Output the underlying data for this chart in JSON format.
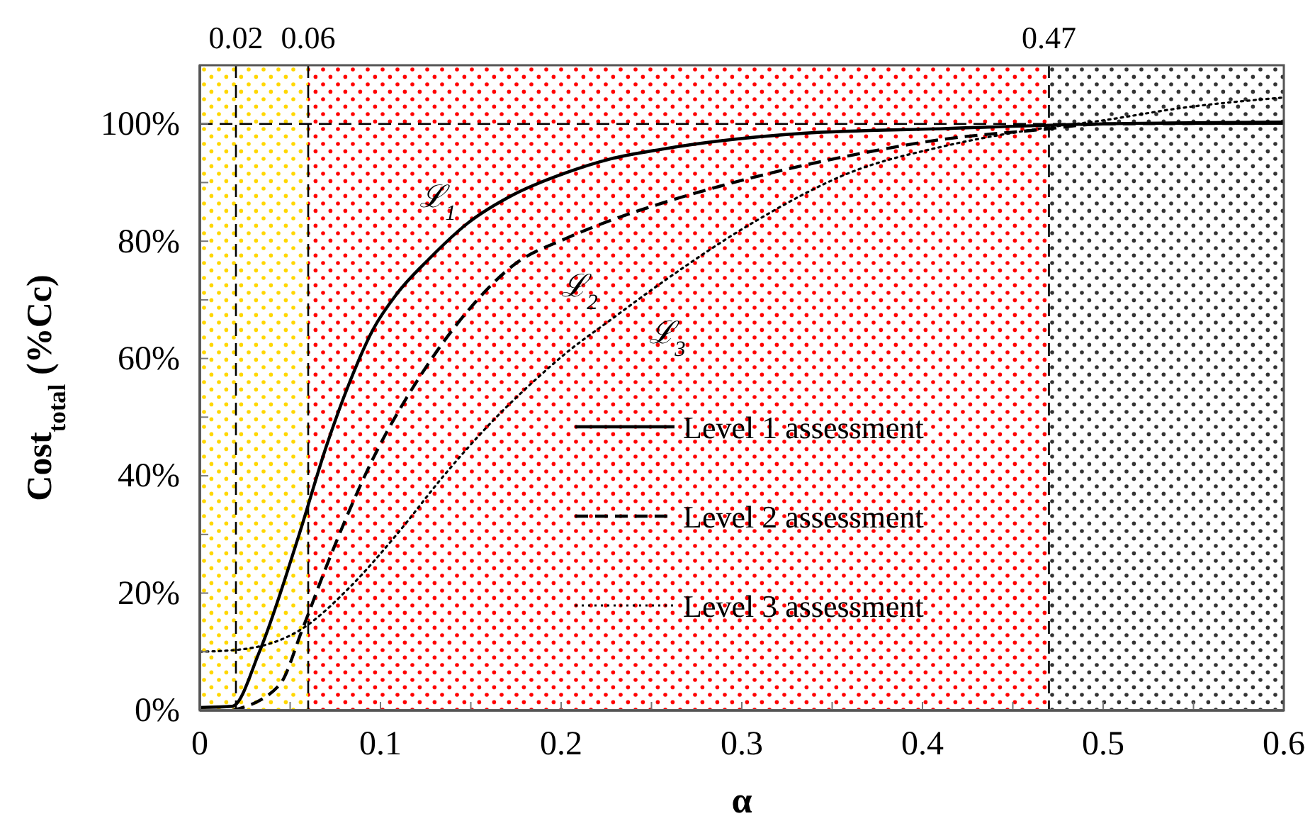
{
  "chart_data": {
    "type": "line",
    "xlabel": "α",
    "ylabel": "Cost$_{total}$ (%Cc)",
    "xlim": [
      0,
      0.6
    ],
    "ylim": [
      0,
      110
    ],
    "xticks": [
      0,
      {
        "value": 0.05,
        "label": null
      },
      0.1,
      {
        "value": 0.15,
        "label": null
      },
      0.2,
      {
        "value": 0.25,
        "label": null
      },
      0.3,
      {
        "value": 0.35,
        "label": null
      },
      0.4,
      {
        "value": 0.45,
        "label": null
      },
      0.5,
      {
        "value": 0.55,
        "label": null
      },
      0.6
    ],
    "yticks": [
      {
        "value": 0,
        "label": "0%"
      },
      {
        "value": 10,
        "label": null
      },
      {
        "value": 20,
        "label": "20%"
      },
      {
        "value": 30,
        "label": null
      },
      {
        "value": 40,
        "label": "40%"
      },
      {
        "value": 50,
        "label": null
      },
      {
        "value": 60,
        "label": "60%"
      },
      {
        "value": 70,
        "label": null
      },
      {
        "value": 80,
        "label": "80%"
      },
      {
        "value": 90,
        "label": null
      },
      {
        "value": 100,
        "label": "100%"
      },
      {
        "value": 110,
        "label": null
      }
    ],
    "grid": false,
    "legend": "bottom right",
    "marker": "none",
    "series": [
      {
        "name": "Level 1 assessment",
        "color": "#000000",
        "line_style": "solid",
        "x": [
          0,
          0.018,
          0.033,
          0.055,
          0.07,
          0.083,
          0.096,
          0.109,
          0.127,
          0.148,
          0.174,
          0.203,
          0.227,
          0.256,
          0.334,
          0.412,
          0.5,
          0.6
        ],
        "values": [
          0.5,
          0.7,
          10,
          30,
          45,
          56,
          65,
          71,
          77,
          83,
          88,
          91.7,
          94,
          95.7,
          98.4,
          99.2,
          100,
          100.3
        ]
      },
      {
        "name": "Level 2 assessment",
        "color": "#000000",
        "line_style": "dashed",
        "x": [
          0.018,
          0.044,
          0.057,
          0.07,
          0.096,
          0.122,
          0.148,
          0.174,
          0.203,
          0.227,
          0.256,
          0.308,
          0.36,
          0.412,
          0.465,
          0.5,
          0.6
        ],
        "values": [
          0,
          4.3,
          14,
          24.5,
          43,
          57,
          68,
          76,
          80.5,
          83.5,
          86.5,
          91,
          94.6,
          97.4,
          99,
          100,
          100.1
        ]
      },
      {
        "name": "Level 3 assessment",
        "color": "#000000",
        "line_style": "dotted",
        "x": [
          0,
          0.023,
          0.057,
          0.083,
          0.109,
          0.135,
          0.161,
          0.188,
          0.203,
          0.227,
          0.256,
          0.308,
          0.36,
          0.412,
          0.465,
          0.5,
          0.543,
          0.6
        ],
        "values": [
          10,
          10.4,
          14,
          21,
          30,
          40,
          49,
          57,
          61,
          66.5,
          73,
          83.5,
          91.7,
          96.2,
          99.2,
          100.6,
          102.7,
          104.5
        ]
      }
    ],
    "bands": [
      {
        "axis": "x",
        "from": 0,
        "to": 0.06,
        "color": "#ffd700"
      },
      {
        "axis": "x",
        "from": 0.06,
        "to": 0.47,
        "color": "#ff0000"
      },
      {
        "axis": "x",
        "from": 0.47,
        "to": 0.6,
        "color": "#333333"
      }
    ],
    "ref_lines": [
      {
        "axis": "x",
        "value": 0.02,
        "label": "0.02",
        "line_style": "dashed"
      },
      {
        "axis": "x",
        "value": 0.06,
        "label": "0.06",
        "line_style": "dashed"
      },
      {
        "axis": "x",
        "value": 0.47,
        "label": "0.47",
        "line_style": "dashed"
      },
      {
        "axis": "y",
        "value": 100,
        "line_style": "dashed"
      }
    ],
    "annotations": [
      "ℒ$_{1}$",
      "ℒ$_{2}$",
      "ℒ$_{3}$"
    ]
  }
}
